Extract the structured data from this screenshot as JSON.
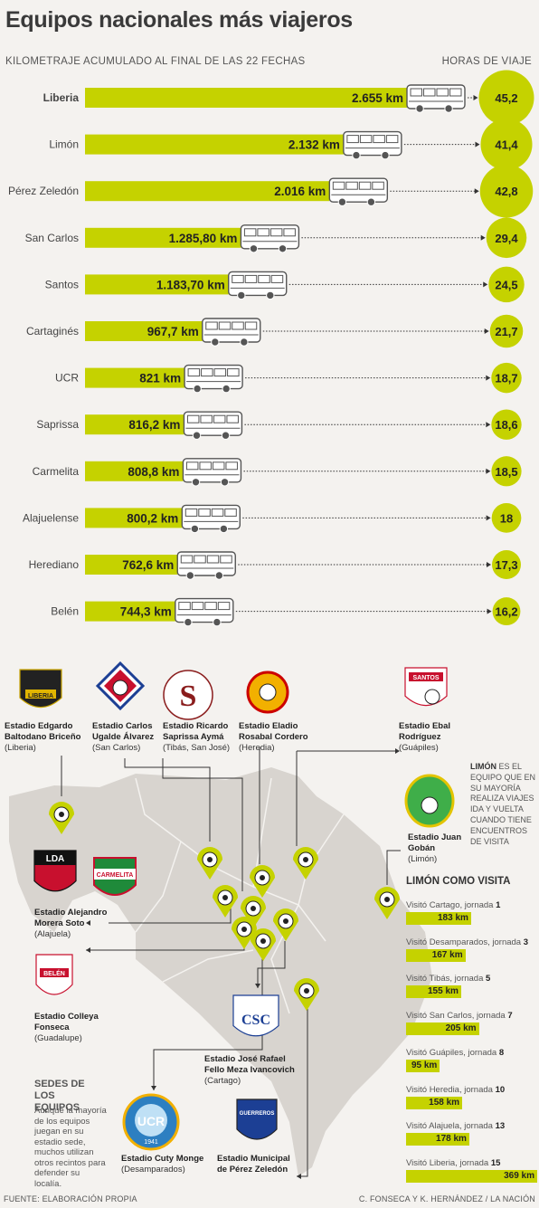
{
  "title": "Equipos nacionales más viajeros",
  "subtitle": "KILOMETRAJE ACUMULADO AL FINAL DE LAS 22 FECHAS",
  "hours_title": "HORAS DE VIAJE",
  "colors": {
    "bar": "#c5d200",
    "circle": "#c5d200",
    "map": "#d8d4cf"
  },
  "chart_data": {
    "type": "bar",
    "title": "Equipos nacionales más viajeros",
    "xlabel": "KILOMETRAJE ACUMULADO AL FINAL DE LAS 22 FECHAS",
    "categories": [
      "Liberia",
      "Limón",
      "Pérez Zeledón",
      "San Carlos",
      "Santos",
      "Cartaginés",
      "UCR",
      "Saprissa",
      "Carmelita",
      "Alajuelense",
      "Herediano",
      "Belén"
    ],
    "values": [
      2655,
      2132,
      2016,
      1285.8,
      1183.7,
      967.7,
      821,
      816.2,
      808.8,
      800.2,
      762.6,
      744.3
    ],
    "value_labels": [
      "2.655 km",
      "2.132 km",
      "2.016 km",
      "1.285,80 km",
      "1.183,70 km",
      "967,7 km",
      "821 km",
      "816,2 km",
      "808,8 km",
      "800,2 km",
      "762,6 km",
      "744,3 km"
    ],
    "series": [
      {
        "name": "HORAS DE VIAJE",
        "values": [
          45.2,
          41.4,
          42.8,
          29.4,
          24.5,
          21.7,
          18.7,
          18.6,
          18.5,
          18,
          17.3,
          16.2
        ],
        "labels": [
          "45,2",
          "41,4",
          "42,8",
          "29,4",
          "24,5",
          "21,7",
          "18,7",
          "18,6",
          "18,5",
          "18",
          "17,3",
          "16,2"
        ]
      }
    ]
  },
  "map": {
    "sedes_title": "SEDES DE LOS EQUIPOS",
    "sedes_text": "Aunque la mayoría de los equipos juegan en su estadio sede, muchos utilizan otros recintos para defender su localía.",
    "stadiums": [
      {
        "name": "Estadio Edgardo Baltodano Briceño",
        "place": "(Liberia)"
      },
      {
        "name": "Estadio Carlos Ugalde Álvarez",
        "place": "(San Carlos)"
      },
      {
        "name": "Estadio Ricardo Saprissa Aymá",
        "place": "(Tibás, San José)"
      },
      {
        "name": "Estadio Eladio Rosabal Cordero",
        "place": "(Heredia)"
      },
      {
        "name": "Estadio Ebal Rodríguez",
        "place": "(Guápiles)"
      },
      {
        "name": "Estadio Juan Gobán",
        "place": "(Limón)"
      },
      {
        "name": "Estadio Alejandro Morera Soto",
        "place": "(Alajuela)"
      },
      {
        "name": "Estadio Colleya Fonseca",
        "place": "(Guadalupe)"
      },
      {
        "name": "Estadio José Rafael Fello Meza Ivancovich",
        "place": "(Cartago)"
      },
      {
        "name": "Estadio Cuty Monge",
        "place": "(Desamparados)"
      },
      {
        "name": "Estadio Municipal de Pérez Zeledón",
        "place": ""
      }
    ],
    "limon_note_bold": "LIMÓN",
    "limon_note": " ES EL EQUIPO QUE EN SU MAYORÍA REALIZA VIAJES IDA Y VUELTA CUANDO TIENE ENCUENTROS DE VISITA",
    "limon_visita_title": "LIMÓN COMO VISITA",
    "visits": [
      {
        "label": "Visitó Cartago, jornada ",
        "num": "1",
        "km": "183 km",
        "value": 183
      },
      {
        "label": "Visitó Desamparados, jornada ",
        "num": "3",
        "km": "167 km",
        "value": 167
      },
      {
        "label": "Visitó Tibás, jornada ",
        "num": "5",
        "km": "155 km",
        "value": 155
      },
      {
        "label": "Visitó San Carlos, jornada ",
        "num": "7",
        "km": "205 km",
        "value": 205
      },
      {
        "label": "Visitó Guápiles, jornada ",
        "num": "8",
        "km": "95 km",
        "value": 95
      },
      {
        "label": "Visitó Heredia, jornada ",
        "num": "10",
        "km": "158 km",
        "value": 158
      },
      {
        "label": "Visitó Alajuela, jornada ",
        "num": "13",
        "km": "178 km",
        "value": 178
      },
      {
        "label": "Visitó Liberia, jornada ",
        "num": "15",
        "km": "369 km",
        "value": 369
      }
    ],
    "logo_texts": {
      "liberia": "LIBERIA",
      "lda": "LDA",
      "carmelita": "CARMELITA",
      "santos": "SANTOS",
      "belen": "BELÉN",
      "ucr": "UCR",
      "year": "1941",
      "csc": "CSC",
      "guerreros": "GUERREROS"
    }
  },
  "footer": {
    "source": "FUENTE: ELABORACIÓN PROPIA",
    "credit": "C. FONSECA Y K. HERNÁNDEZ / LA NACIÓN"
  }
}
